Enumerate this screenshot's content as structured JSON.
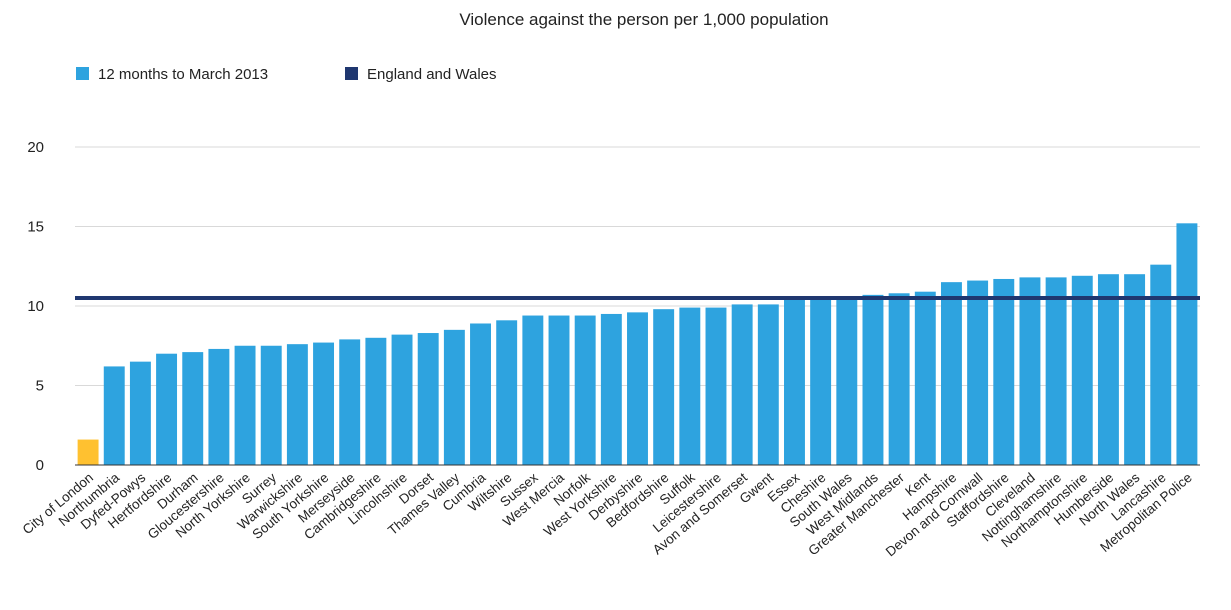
{
  "chart_data": {
    "type": "bar",
    "title": "Violence against the person per 1,000 population",
    "xlabel": "",
    "ylabel": "",
    "ylim": [
      0,
      20
    ],
    "yticks": [
      0,
      5,
      10,
      15,
      20
    ],
    "grid": true,
    "legend_position": "top-left",
    "categories": [
      "City of London",
      "Northumbria",
      "Dyfed-Powys",
      "Hertfordshire",
      "Durham",
      "Gloucestershire",
      "North Yorkshire",
      "Surrey",
      "Warwickshire",
      "South Yorkshire",
      "Merseyside",
      "Cambridgeshire",
      "Lincolnshire",
      "Dorset",
      "Thames Valley",
      "Cumbria",
      "Wiltshire",
      "Sussex",
      "West Mercia",
      "Norfolk",
      "West Yorkshire",
      "Derbyshire",
      "Bedfordshire",
      "Suffolk",
      "Leicestershire",
      "Avon and Somerset",
      "Gwent",
      "Essex",
      "Cheshire",
      "South Wales",
      "West Midlands",
      "Greater Manchester",
      "Kent",
      "Hampshire",
      "Devon and Cornwall",
      "Staffordshire",
      "Cleveland",
      "Nottinghamshire",
      "Northamptonshire",
      "Humberside",
      "North Wales",
      "Lancashire",
      "Metropolitan Police"
    ],
    "series": [
      {
        "name": "12 months to March 2013",
        "color": "#2ea3df",
        "values": [
          1.6,
          6.2,
          6.5,
          7.0,
          7.1,
          7.3,
          7.5,
          7.5,
          7.6,
          7.7,
          7.9,
          8.0,
          8.2,
          8.3,
          8.5,
          8.9,
          9.1,
          9.4,
          9.4,
          9.4,
          9.5,
          9.6,
          9.8,
          9.9,
          9.9,
          10.1,
          10.1,
          10.4,
          10.5,
          10.6,
          10.7,
          10.8,
          10.9,
          11.5,
          11.6,
          11.7,
          11.8,
          11.8,
          11.9,
          12.0,
          12.0,
          12.6,
          15.2
        ]
      }
    ],
    "highlight": {
      "category": "City of London",
      "color": "#ffc130"
    },
    "reference_line": {
      "name": "England and Wales",
      "value": 10.5,
      "color": "#1f3770"
    }
  }
}
